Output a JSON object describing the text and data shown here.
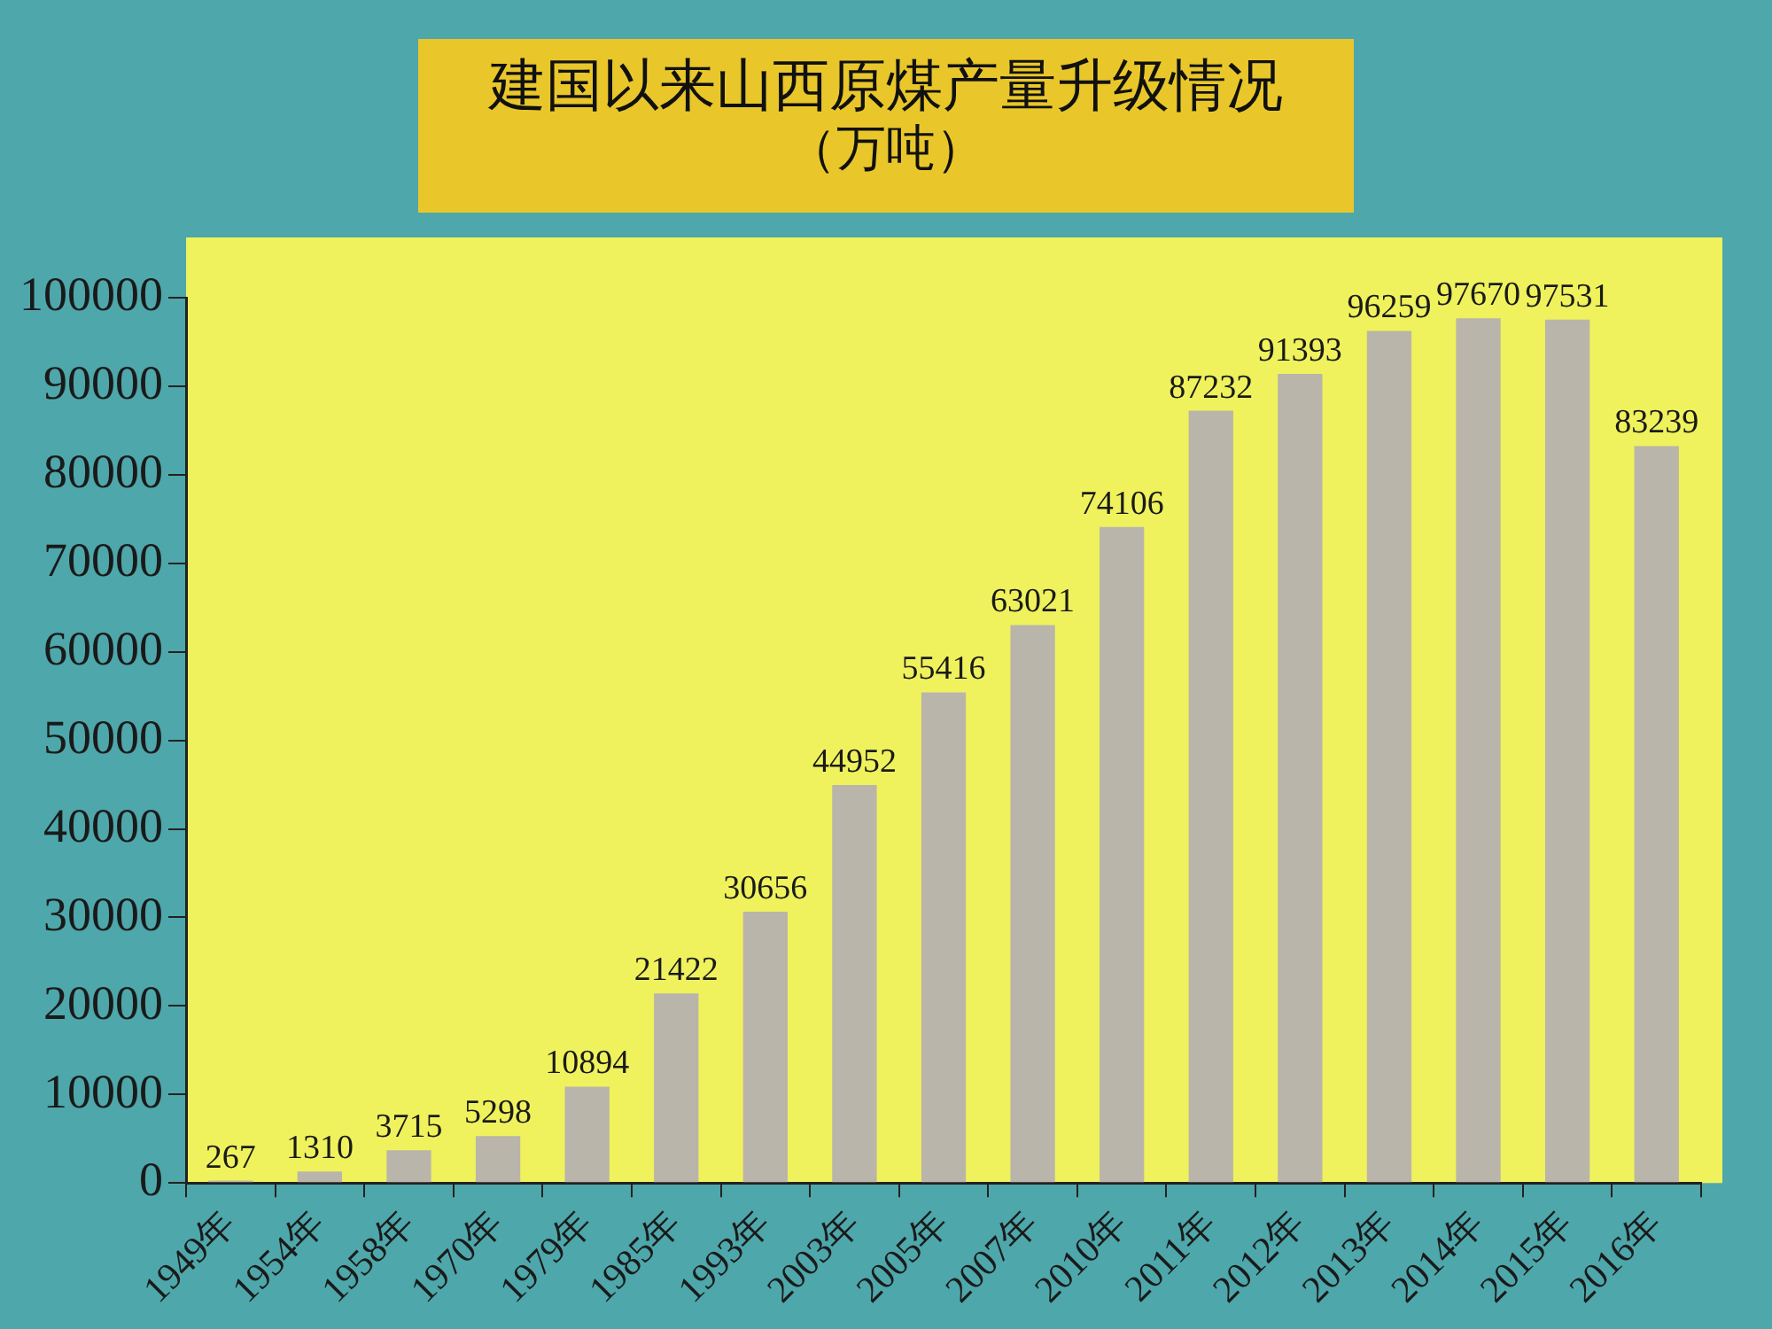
{
  "chart_data": {
    "type": "bar",
    "title": "建国以来山西原煤产量升级情况",
    "subtitle": "（万吨）",
    "categories": [
      "1949年",
      "1954年",
      "1958年",
      "1970年",
      "1979年",
      "1985年",
      "1993年",
      "2003年",
      "2005年",
      "2007年",
      "2010年",
      "2011年",
      "2012年",
      "2013年",
      "2014年",
      "2015年",
      "2016年"
    ],
    "values": [
      267,
      1310,
      3715,
      5298,
      10894,
      21422,
      30656,
      44952,
      55416,
      63021,
      74106,
      87232,
      91393,
      96259,
      97670,
      97531,
      83239
    ],
    "color": "#b9b5aa",
    "ylim": [
      0,
      100000
    ],
    "yticks": [
      0,
      10000,
      20000,
      30000,
      40000,
      50000,
      60000,
      70000,
      80000,
      90000,
      100000
    ],
    "data_labels": true,
    "legend": false,
    "grid": false
  }
}
